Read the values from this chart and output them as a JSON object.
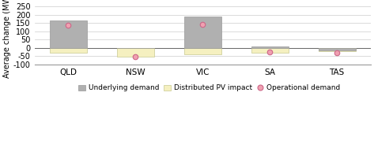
{
  "categories": [
    "QLD",
    "NSW",
    "VIC",
    "SA",
    "TAS"
  ],
  "underlying_demand": [
    165,
    0,
    190,
    10,
    -15
  ],
  "pv_impact": [
    -30,
    -55,
    -40,
    -28,
    -20
  ],
  "operational_demand": [
    135,
    -55,
    140,
    -25,
    -28
  ],
  "underlying_color": "#b0b0b0",
  "pv_color": "#f5f0c0",
  "operational_marker_fill": "#f0a0b0",
  "operational_marker_edge": "#cc6688",
  "ylabel": "Average change (MW)",
  "ylim": [
    -100,
    250
  ],
  "yticks": [
    -100,
    -50,
    0,
    50,
    100,
    150,
    200,
    250
  ],
  "bar_width": 0.55,
  "background_color": "#ffffff",
  "grid_color": "#cccccc",
  "legend_labels": [
    "Underlying demand",
    "Distributed PV impact",
    "Operational demand"
  ]
}
